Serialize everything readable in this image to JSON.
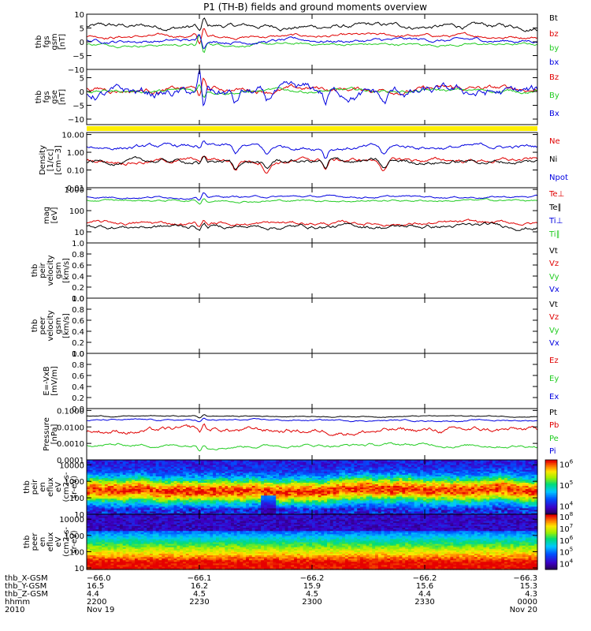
{
  "colors": {
    "black": "#000000",
    "red": "#e00000",
    "green": "#22cc22",
    "blue": "#0000e0",
    "yellow": "#ffee00"
  },
  "chart_data": {
    "title": "P1 (TH-B) fields and ground moments overview",
    "type": "line",
    "x_range": [
      "2010-11-19 22:00",
      "2010-11-20 00:00"
    ],
    "panels": [
      {
        "id": "fgs_gsm",
        "scale": "linear",
        "yrange": [
          -10,
          10
        ],
        "ylabel": [
          "thb",
          "fgs",
          "gsm",
          "[nT]"
        ],
        "ticks": [
          {
            "v": 10,
            "t": "10"
          },
          {
            "v": 5,
            "t": "5"
          },
          {
            "v": 0,
            "t": "0"
          },
          {
            "v": -5,
            "t": "−5"
          },
          {
            "v": -10,
            "t": "−10"
          }
        ],
        "legend": [
          {
            "t": "Bt",
            "c": "black"
          },
          {
            "t": "bz",
            "c": "red"
          },
          {
            "t": "by",
            "c": "green"
          },
          {
            "t": "bx",
            "c": "blue"
          }
        ],
        "series": [
          {
            "name": "Bt",
            "color": "black",
            "base": 5.5,
            "amp": 0.9,
            "event_amp": 2.8
          },
          {
            "name": "bz",
            "color": "red",
            "base": 2.0,
            "amp": 0.7,
            "event_amp": 3.5
          },
          {
            "name": "by",
            "color": "green",
            "base": -1.0,
            "amp": 0.6,
            "event_amp": -4.0
          },
          {
            "name": "bx",
            "color": "blue",
            "base": 0.4,
            "amp": 0.7,
            "event_amp": -3.0
          }
        ]
      },
      {
        "id": "fgs_gse",
        "scale": "linear",
        "yrange": [
          -12,
          8
        ],
        "ylabel": [
          "thb",
          "fgs",
          "gse",
          "[nT]"
        ],
        "ticks": [
          {
            "v": 5,
            "t": "5"
          },
          {
            "v": 0,
            "t": "0"
          },
          {
            "v": -5,
            "t": "−5"
          },
          {
            "v": -10,
            "t": "−10"
          }
        ],
        "legend": [
          {
            "t": "Bz",
            "c": "red"
          },
          {
            "t": "By",
            "c": "green"
          },
          {
            "t": "Bx",
            "c": "blue"
          }
        ],
        "series": [
          {
            "name": "Bz",
            "color": "red",
            "base": 0.8,
            "amp": 1.0,
            "event_amp": 4.5
          },
          {
            "name": "By",
            "color": "green",
            "base": 0.2,
            "amp": 0.7,
            "event_amp": -2.5
          },
          {
            "name": "Bx",
            "color": "blue",
            "base": -0.8,
            "amp": 2.2,
            "event_amp": -8.0
          }
        ]
      },
      {
        "id": "density",
        "scale": "log",
        "yrange": [
          0.01,
          13
        ],
        "ylabel": [
          "Density",
          "[1/cc]",
          "[cm−3]"
        ],
        "ticks": [
          {
            "v": 10,
            "t": "10.00"
          },
          {
            "v": 1,
            "t": "1.00"
          },
          {
            "v": 0.1,
            "t": "0.10"
          },
          {
            "v": 0.01,
            "t": "0.01"
          }
        ],
        "legend": [
          {
            "t": "Ne",
            "c": "red"
          },
          {
            "t": "Ni",
            "c": "black"
          },
          {
            "t": "Npot",
            "c": "blue"
          }
        ],
        "series": [
          {
            "name": "Npot",
            "color": "blue",
            "base": 2.0,
            "amp": 0.22,
            "event_amp": 0.4
          },
          {
            "name": "Ne",
            "color": "red",
            "base": 0.35,
            "amp": 0.28,
            "event_amp": 0.4
          },
          {
            "name": "Ni",
            "color": "black",
            "base": 0.3,
            "amp": 0.28,
            "event_amp": 0.4
          }
        ]
      },
      {
        "id": "temperature",
        "scale": "log",
        "yrange": [
          3,
          1200
        ],
        "ylabel": [
          "mag",
          "[eV]"
        ],
        "ticks": [
          {
            "v": 1000,
            "t": "1000"
          },
          {
            "v": 100,
            "t": "100"
          },
          {
            "v": 10,
            "t": "10"
          }
        ],
        "legend": [
          {
            "t": "Te⊥",
            "c": "red"
          },
          {
            "t": "Te∥",
            "c": "black"
          },
          {
            "t": "Ti⊥",
            "c": "blue"
          },
          {
            "t": "Ti∥",
            "c": "green"
          }
        ],
        "series": [
          {
            "name": "Ti⊥",
            "color": "blue",
            "base": 450,
            "amp": 0.12,
            "event_amp": 0.3
          },
          {
            "name": "Ti∥",
            "color": "green",
            "base": 300,
            "amp": 0.12,
            "event_amp": 0.3
          },
          {
            "name": "Te⊥",
            "color": "red",
            "base": 25,
            "amp": 0.2,
            "event_amp": 0.3
          },
          {
            "name": "Te∥",
            "color": "black",
            "base": 18,
            "amp": 0.2,
            "event_amp": 0.3
          }
        ]
      },
      {
        "id": "peir_velocity",
        "scale": "linear",
        "yrange": [
          0,
          1
        ],
        "empty": true,
        "ylabel": [
          "thb",
          "peir",
          "velocity",
          "gsm",
          "[km/s]"
        ],
        "ticks": [
          {
            "v": 1,
            "t": "1.0"
          },
          {
            "v": 0.8,
            "t": "0.8"
          },
          {
            "v": 0.6,
            "t": "0.6"
          },
          {
            "v": 0.4,
            "t": "0.4"
          },
          {
            "v": 0.2,
            "t": "0.2"
          },
          {
            "v": 0,
            "t": "0.0"
          }
        ],
        "legend": [
          {
            "t": "Vt",
            "c": "black"
          },
          {
            "t": "Vz",
            "c": "red"
          },
          {
            "t": "Vy",
            "c": "green"
          },
          {
            "t": "Vx",
            "c": "blue"
          }
        ],
        "series": []
      },
      {
        "id": "peer_velocity",
        "scale": "linear",
        "yrange": [
          0,
          1
        ],
        "empty": true,
        "ylabel": [
          "thb",
          "peer",
          "velocity",
          "gsm",
          "[km/s]"
        ],
        "ticks": [
          {
            "v": 1,
            "t": "1.0"
          },
          {
            "v": 0.8,
            "t": "0.8"
          },
          {
            "v": 0.6,
            "t": "0.6"
          },
          {
            "v": 0.4,
            "t": "0.4"
          },
          {
            "v": 0.2,
            "t": "0.2"
          },
          {
            "v": 0,
            "t": "0.0"
          }
        ],
        "legend": [
          {
            "t": "Vt",
            "c": "black"
          },
          {
            "t": "Vz",
            "c": "red"
          },
          {
            "t": "Vy",
            "c": "green"
          },
          {
            "t": "Vx",
            "c": "blue"
          }
        ],
        "series": []
      },
      {
        "id": "e_vxb",
        "scale": "linear",
        "yrange": [
          0,
          1
        ],
        "empty": true,
        "ylabel": [
          "E=-VxB",
          "[mV/m]"
        ],
        "ticks": [
          {
            "v": 1,
            "t": "1.0"
          },
          {
            "v": 0.8,
            "t": "0.8"
          },
          {
            "v": 0.6,
            "t": "0.6"
          },
          {
            "v": 0.4,
            "t": "0.4"
          },
          {
            "v": 0.2,
            "t": "0.2"
          },
          {
            "v": 0,
            "t": "0.0"
          }
        ],
        "legend": [
          {
            "t": "Ez",
            "c": "red"
          },
          {
            "t": "Ey",
            "c": "green"
          },
          {
            "t": "Ex",
            "c": "blue"
          }
        ],
        "series": []
      },
      {
        "id": "pressure",
        "scale": "log",
        "yrange": [
          0.0001,
          0.13
        ],
        "ylabel": [
          "Pressure",
          "[nPa]"
        ],
        "ticks": [
          {
            "v": 0.1,
            "t": "0.1000"
          },
          {
            "v": 0.01,
            "t": "0.0100"
          },
          {
            "v": 0.001,
            "t": "0.0010"
          },
          {
            "v": 0.0001,
            "t": "0.0001"
          }
        ],
        "legend": [
          {
            "t": "Pt",
            "c": "black"
          },
          {
            "t": "Pb",
            "c": "red"
          },
          {
            "t": "Pe",
            "c": "green"
          },
          {
            "t": "Pi",
            "c": "blue"
          }
        ],
        "series": [
          {
            "name": "Pt",
            "color": "black",
            "base": 0.045,
            "amp": 0.08,
            "event_amp": 0.2
          },
          {
            "name": "Pi",
            "color": "blue",
            "base": 0.025,
            "amp": 0.12,
            "event_amp": 0.2
          },
          {
            "name": "Pb",
            "color": "red",
            "base": 0.006,
            "amp": 0.35,
            "event_amp": 0.5
          },
          {
            "name": "Pe",
            "color": "green",
            "base": 0.0008,
            "amp": 0.3,
            "event_amp": 0.4
          }
        ]
      },
      {
        "id": "peir_spectrogram",
        "type": "heatmap",
        "scale": "log",
        "yrange": [
          10,
          20000
        ],
        "ylabel": [
          "thb",
          "peir",
          "en",
          "eflux",
          "eV",
          "(cm2-s-",
          "sr-eV)"
        ],
        "ticks": [
          {
            "v": 10000,
            "t": "10000"
          },
          {
            "v": 1000,
            "t": "1000"
          },
          {
            "v": 100,
            "t": "100"
          },
          {
            "v": 10,
            "t": "10"
          }
        ],
        "colorbar": {
          "range_exp": [
            3.6,
            6.2
          ],
          "labels": [
            {
              "e": 6,
              "t": "10",
              "s": "6"
            },
            {
              "e": 5,
              "t": "10",
              "s": "5"
            },
            {
              "e": 4,
              "t": "10",
              "s": "4"
            }
          ]
        },
        "peak_energy_eV": 300
      },
      {
        "id": "peer_spectrogram",
        "type": "heatmap",
        "scale": "log",
        "yrange": [
          8,
          20000
        ],
        "ylabel": [
          "thb",
          "peer",
          "en",
          "eflux",
          "eV",
          "(cm2-s-",
          "sr-eV)"
        ],
        "ticks": [
          {
            "v": 10000,
            "t": "10000"
          },
          {
            "v": 1000,
            "t": "1000"
          },
          {
            "v": 100,
            "t": "100"
          },
          {
            "v": 10,
            "t": "10"
          }
        ],
        "colorbar": {
          "range_exp": [
            3.5,
            8.2
          ],
          "labels": [
            {
              "e": 8,
              "t": "10",
              "s": "8"
            },
            {
              "e": 7,
              "t": "10",
              "s": "7"
            },
            {
              "e": 6,
              "t": "10",
              "s": "6"
            },
            {
              "e": 5,
              "t": "10",
              "s": "5"
            },
            {
              "e": 4,
              "t": "10",
              "s": "4"
            }
          ]
        },
        "peak_energy_eV": 12
      }
    ],
    "x_ticks": [
      {
        "frac": 0.0,
        "X": "−66.0",
        "Y": "16.5",
        "Z": "4.4",
        "hhmm": "2200",
        "date": "Nov 19"
      },
      {
        "frac": 0.25,
        "X": "−66.1",
        "Y": "16.2",
        "Z": "4.5",
        "hhmm": "2230",
        "date": ""
      },
      {
        "frac": 0.5,
        "X": "−66.2",
        "Y": "15.9",
        "Z": "4.5",
        "hhmm": "2300",
        "date": ""
      },
      {
        "frac": 0.75,
        "X": "−66.2",
        "Y": "15.6",
        "Z": "4.4",
        "hhmm": "2330",
        "date": ""
      },
      {
        "frac": 1.0,
        "X": "−66.3",
        "Y": "15.3",
        "Z": "4.3",
        "hhmm": "0000",
        "date": "Nov 20"
      }
    ],
    "footer_rows": [
      "thb_X-GSM",
      "thb_Y-GSM",
      "thb_Z-GSM",
      "hhmm",
      "2010"
    ]
  }
}
